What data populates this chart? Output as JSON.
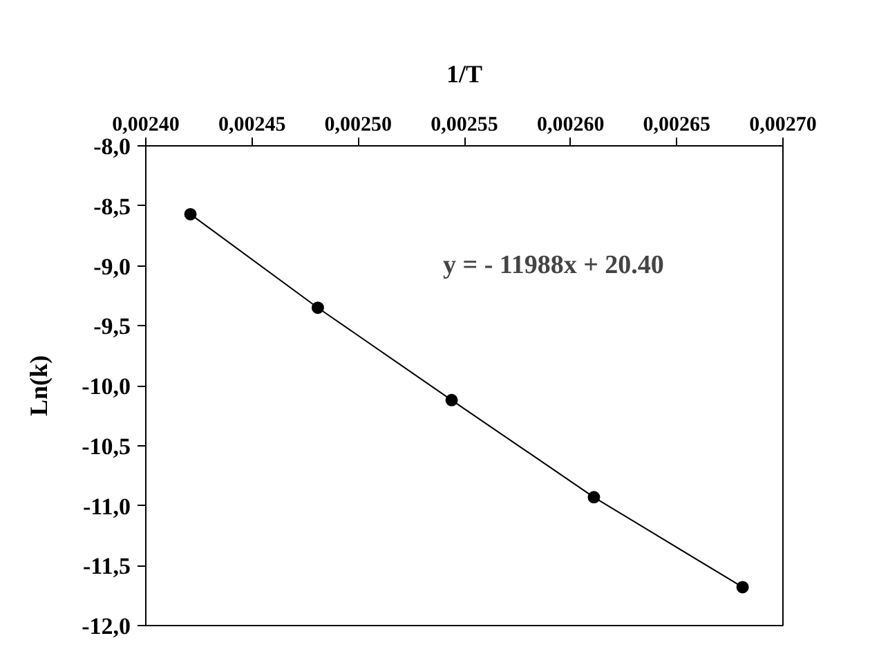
{
  "chart_data": {
    "type": "line",
    "xlabel": "1/T",
    "ylabel": "Ln(k)",
    "x": [
      0.002421,
      0.002481,
      0.002544,
      0.002611,
      0.002681
    ],
    "series": [
      {
        "color": "#000000",
        "values": [
          -8.57,
          -9.35,
          -10.12,
          -10.93,
          -11.68
        ]
      }
    ],
    "xlim": [
      0.0024,
      0.0027
    ],
    "xticks": [
      {
        "value": 0.0024,
        "label": "0,00240"
      },
      {
        "value": 0.00245,
        "label": "0,00245"
      },
      {
        "value": 0.0025,
        "label": "0,00250"
      },
      {
        "value": 0.00255,
        "label": "0,00255"
      },
      {
        "value": 0.0026,
        "label": "0,00260"
      },
      {
        "value": 0.00265,
        "label": "0,00265"
      },
      {
        "value": 0.0027,
        "label": "0,00270"
      }
    ],
    "ylim": [
      -12.0,
      -8.0
    ],
    "yticks": [
      {
        "value": -8.0,
        "label": "-8,0"
      },
      {
        "value": -8.5,
        "label": "-8,5"
      },
      {
        "value": -9.0,
        "label": "-9,0"
      },
      {
        "value": -9.5,
        "label": "-9,5"
      },
      {
        "value": -10.0,
        "label": "-10,0"
      },
      {
        "value": -10.5,
        "label": "-10,5"
      },
      {
        "value": -11.0,
        "label": "-11,0"
      },
      {
        "value": -11.5,
        "label": "-11,5"
      },
      {
        "value": -12.0,
        "label": "-12,0"
      }
    ],
    "annotations": [
      "y = - 11988x + 20.40"
    ],
    "marker": "circle",
    "line_style": "solid",
    "grid": false
  }
}
